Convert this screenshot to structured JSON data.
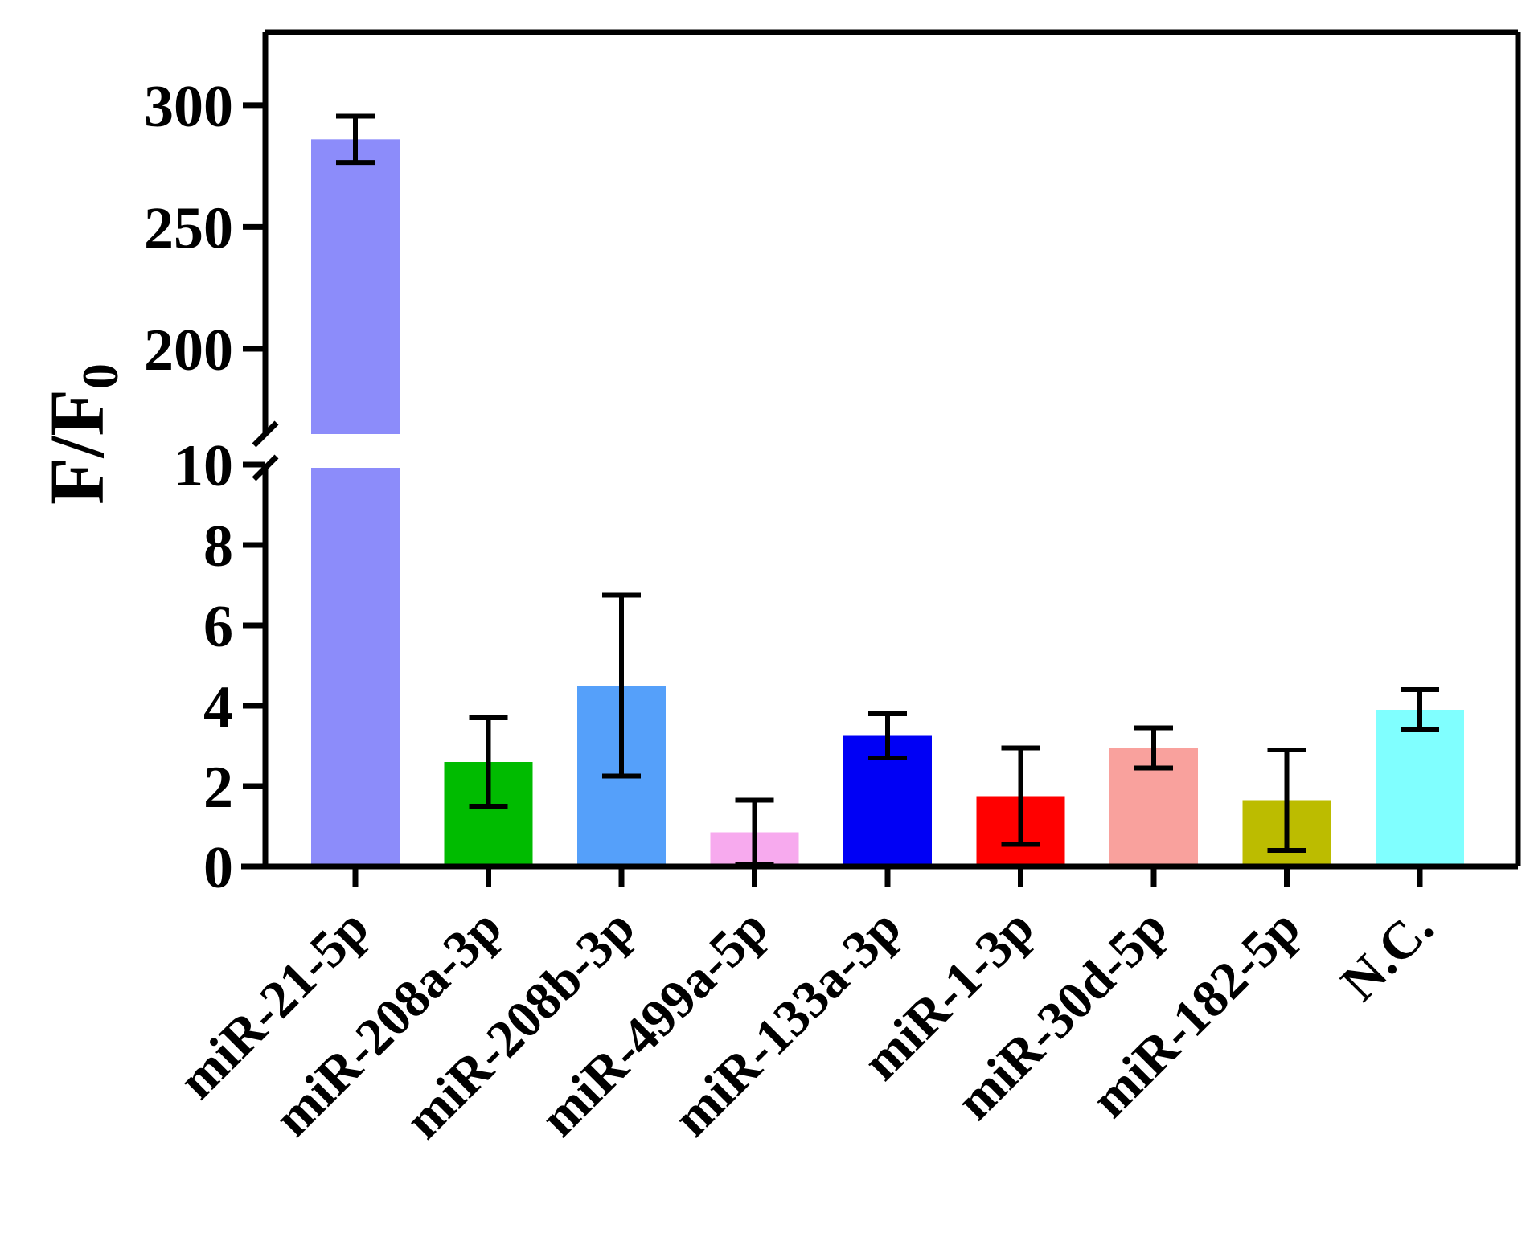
{
  "chart_data": {
    "type": "bar",
    "title": "",
    "xlabel": "",
    "ylabel": "F/F",
    "ylabel_subscript": "0",
    "categories": [
      "miR-21-5p",
      "miR-208a-3p",
      "miR-208b-3p",
      "miR-499a-5p",
      "miR-133a-3p",
      "miR-1-3p",
      "miR-30d-5p",
      "miR-182-5p",
      "N.C."
    ],
    "values": [
      286,
      2.6,
      4.5,
      0.85,
      3.25,
      1.75,
      2.95,
      1.65,
      3.9
    ],
    "errors": [
      9.5,
      1.1,
      2.25,
      0.8,
      0.55,
      1.2,
      0.5,
      1.25,
      0.5
    ],
    "colors": [
      "#8c8cfa",
      "#00bb00",
      "#55a0fa",
      "#f7aaee",
      "#0000f5",
      "#ff0000",
      "#f9a19d",
      "#bcbc00",
      "#80ffff"
    ],
    "axis_break": {
      "lower_range": [
        0,
        10
      ],
      "upper_range": [
        165,
        330
      ]
    },
    "lower_ticks": [
      "0",
      "2",
      "4",
      "6",
      "8",
      "10"
    ],
    "upper_ticks": [
      "200",
      "250",
      "300"
    ],
    "lower_tick_values": [
      0,
      2,
      4,
      6,
      8,
      10
    ],
    "upper_tick_values": [
      200,
      250,
      300
    ],
    "ylim": [
      0,
      330
    ],
    "grid": false,
    "legend": "none"
  }
}
